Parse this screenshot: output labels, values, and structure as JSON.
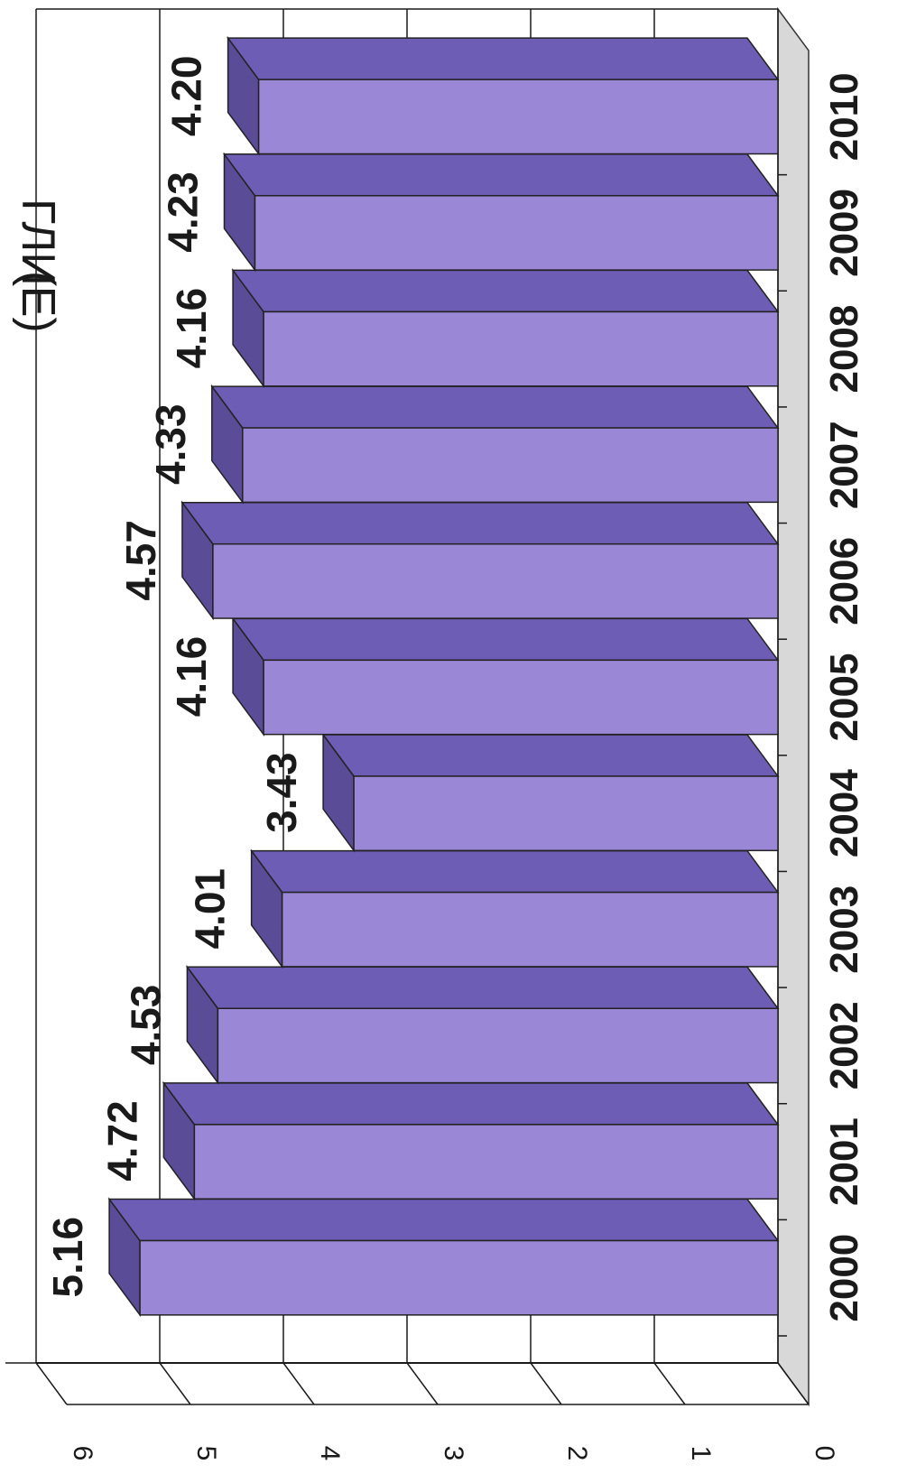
{
  "chart_data": {
    "type": "bar",
    "orientation": "horizontal-3d",
    "title": "",
    "xlabel": "",
    "ylabel": "",
    "categories": [
      "2000",
      "2001",
      "2002",
      "2003",
      "2004",
      "2005",
      "2006",
      "2007",
      "2008",
      "2009",
      "2010"
    ],
    "values": [
      5.16,
      4.72,
      4.53,
      4.01,
      3.43,
      4.16,
      4.57,
      4.33,
      4.16,
      4.23,
      4.2
    ],
    "value_labels": [
      "5.16",
      "4.72",
      "4.53",
      "4.01",
      "3.43",
      "4.16",
      "4.57",
      "4.33",
      "4.16",
      "4.23",
      "4.20"
    ],
    "ylim": [
      0,
      6
    ],
    "ticks": [
      "0",
      "1",
      "2",
      "3",
      "4",
      "5",
      "6"
    ],
    "grid": true,
    "legend": "none",
    "colors": {
      "bar_front": "#9a88d6",
      "bar_top": "#6e5db4",
      "bar_side": "#5b4c98",
      "floor": "#d8d8d8",
      "wall": "#ffffff",
      "grid": "#1a1a1a"
    }
  },
  "rotated_title_fragment": "(",
  "rotated_title_fragment_2": "ГЛИЕ)"
}
